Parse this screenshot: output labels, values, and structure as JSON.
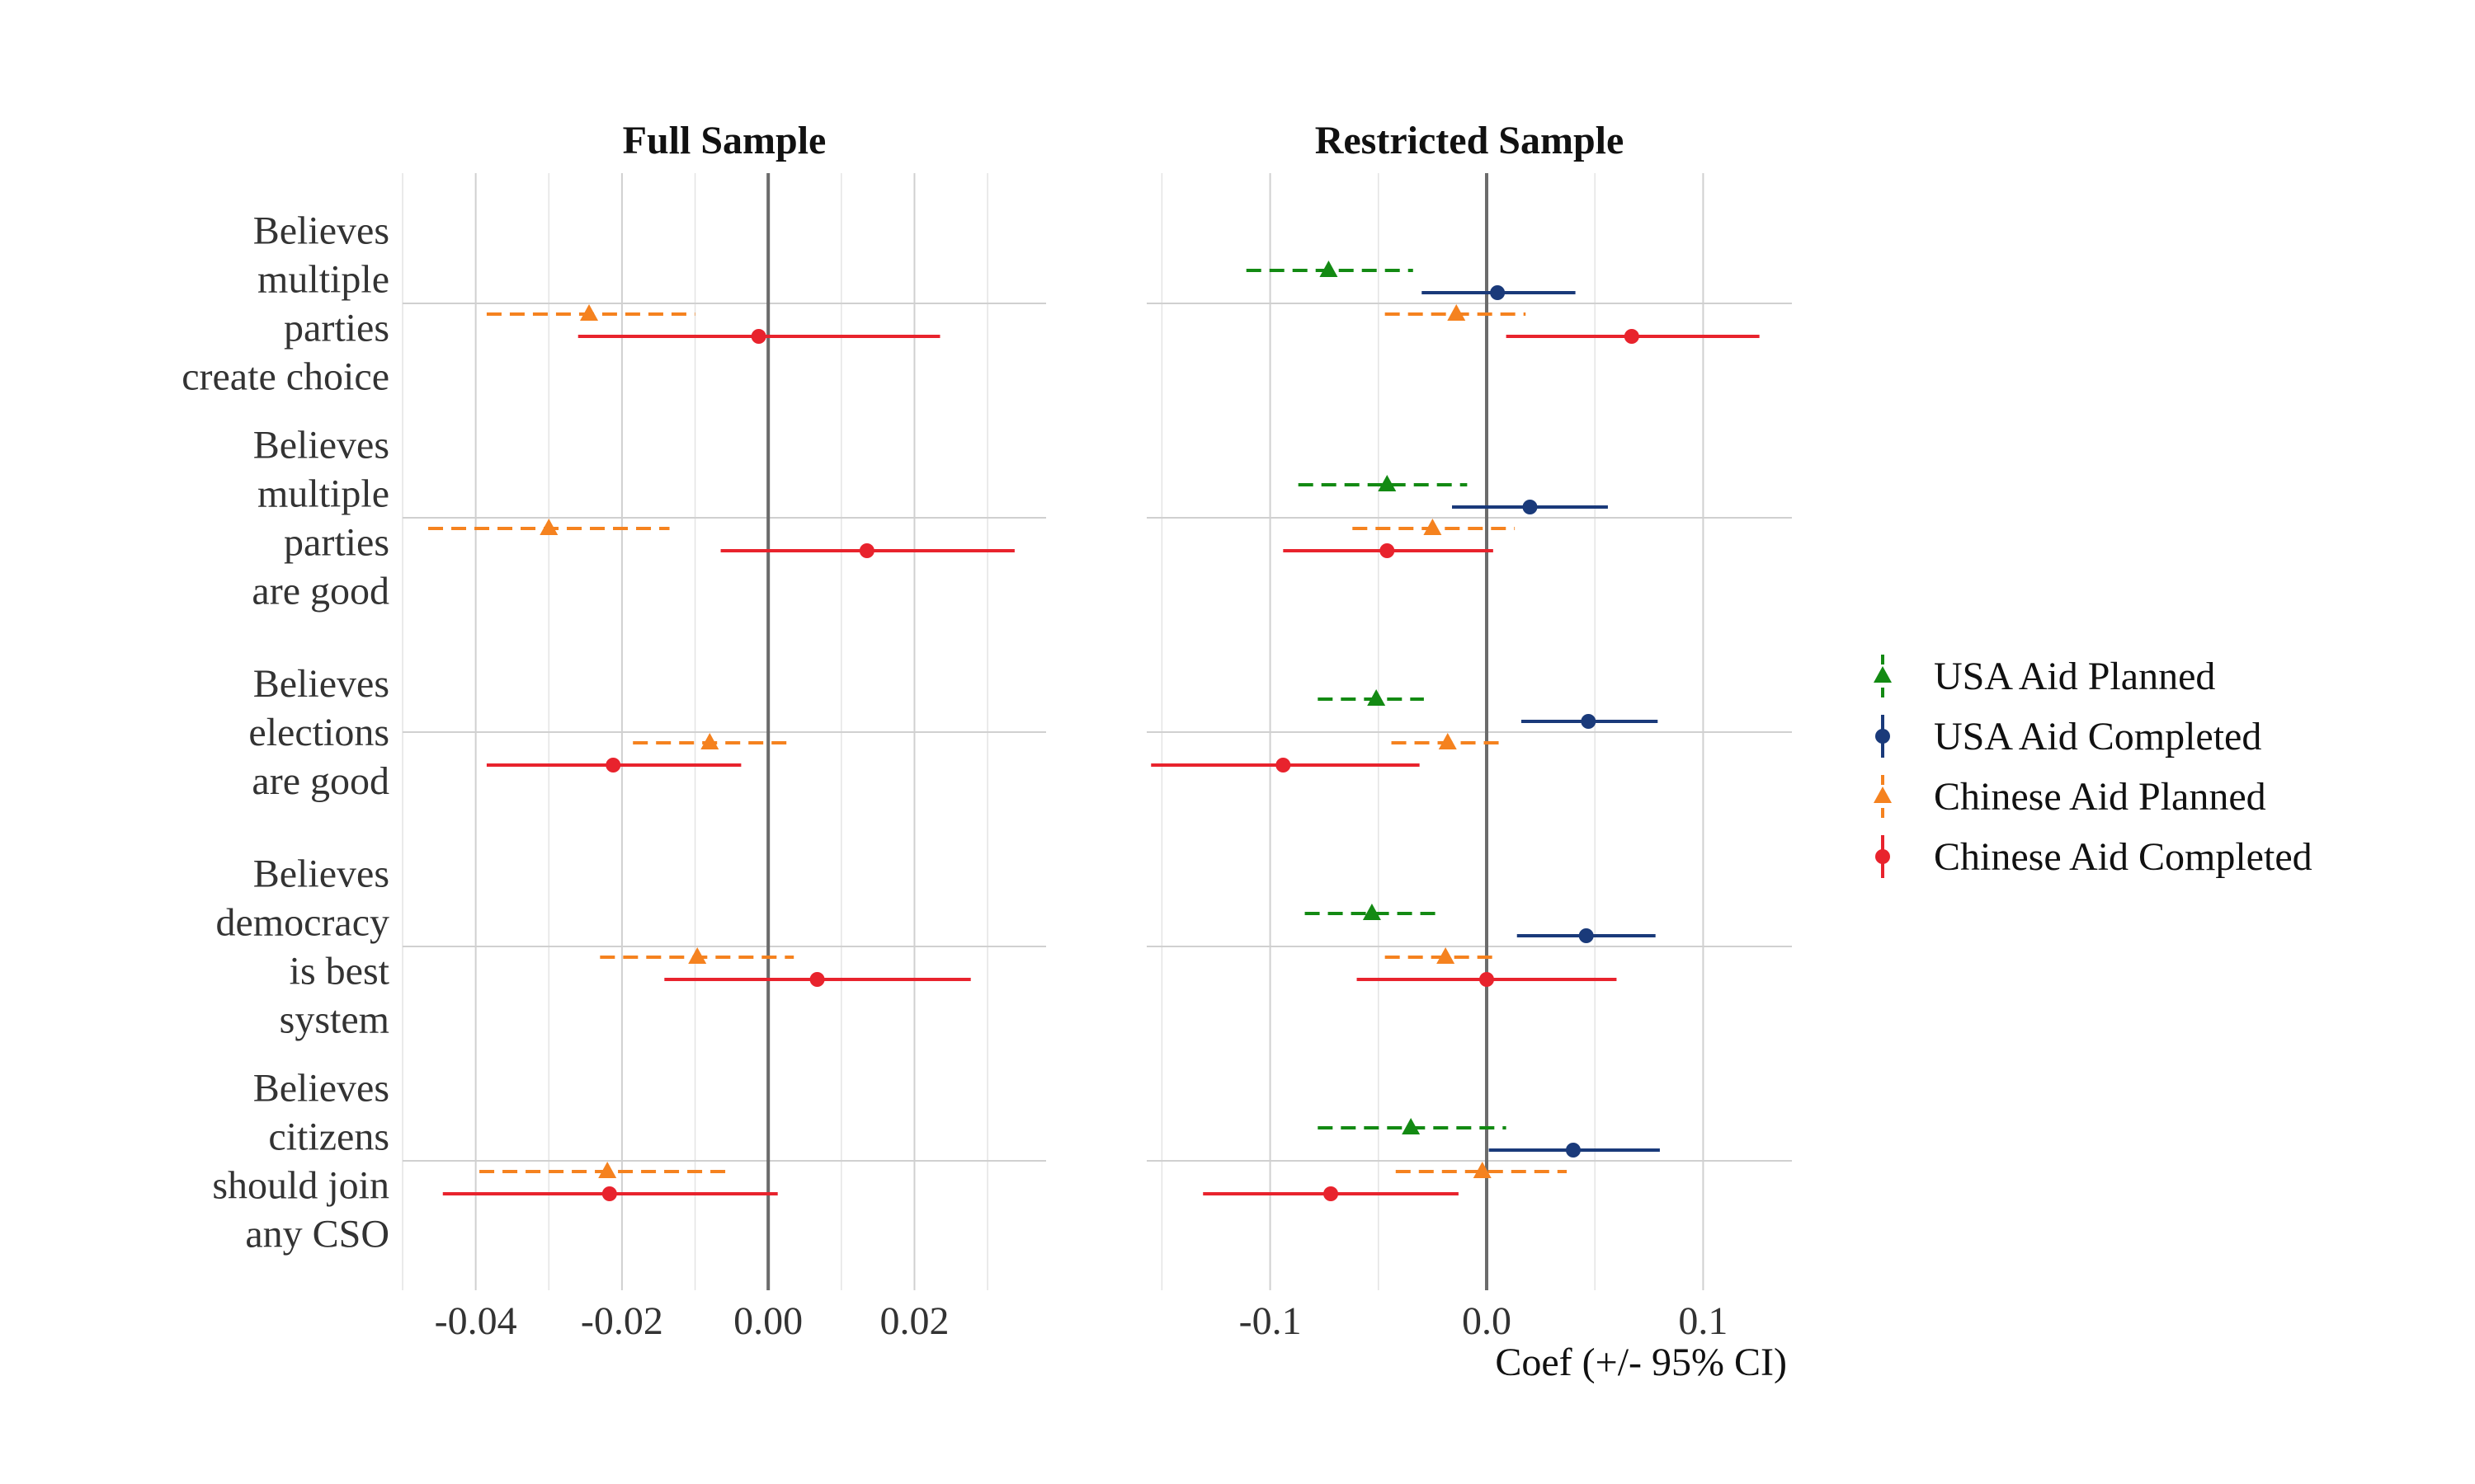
{
  "chart_data": {
    "type": "coefficient-plot",
    "xlabel": "Coef (+/- 95% CI)",
    "categories": [
      [
        "Believes",
        "multiple",
        "parties",
        "create choice"
      ],
      [
        "Believes",
        "multiple",
        "parties",
        "are good"
      ],
      [
        "Believes",
        "elections",
        "are good"
      ],
      [
        "Believes",
        "democracy",
        "is best",
        "system"
      ],
      [
        "Believes",
        "citizens",
        "should join",
        "any CSO"
      ]
    ],
    "series_info": [
      {
        "name": "USA Aid Planned",
        "color": "#138a13",
        "shape": "triangle",
        "dash": true
      },
      {
        "name": "USA Aid Completed",
        "color": "#1a3a7a",
        "shape": "circle",
        "dash": false
      },
      {
        "name": "Chinese Aid Planned",
        "color": "#f5821f",
        "shape": "triangle",
        "dash": true
      },
      {
        "name": "Chinese Aid Completed",
        "color": "#e8232d",
        "shape": "circle",
        "dash": false
      }
    ],
    "panels": [
      {
        "title": "Full Sample",
        "xlim": [
          -0.05,
          0.038
        ],
        "ticks": [
          -0.04,
          -0.02,
          0.0,
          0.02
        ],
        "tick_labels": [
          "-0.04",
          "-0.02",
          "0.00",
          "0.02"
        ],
        "series": [
          {
            "name": "USA Aid Planned",
            "points": []
          },
          {
            "name": "USA Aid Completed",
            "points": []
          },
          {
            "name": "Chinese Aid Planned",
            "points": [
              {
                "est": -0.0245,
                "lo": -0.0385,
                "hi": -0.01
              },
              {
                "est": -0.03,
                "lo": -0.0465,
                "hi": -0.0135
              },
              {
                "est": -0.008,
                "lo": -0.0185,
                "hi": 0.0025
              },
              {
                "est": -0.0097,
                "lo": -0.023,
                "hi": 0.0035
              },
              {
                "est": -0.022,
                "lo": -0.0395,
                "hi": -0.005
              }
            ]
          },
          {
            "name": "Chinese Aid Completed",
            "points": [
              {
                "est": -0.0013,
                "lo": -0.026,
                "hi": 0.0235
              },
              {
                "est": 0.0135,
                "lo": -0.0065,
                "hi": 0.0337
              },
              {
                "est": -0.0212,
                "lo": -0.0385,
                "hi": -0.0037
              },
              {
                "est": 0.0067,
                "lo": -0.0142,
                "hi": 0.0277
              },
              {
                "est": -0.0217,
                "lo": -0.0445,
                "hi": 0.0013
              }
            ]
          }
        ]
      },
      {
        "title": "Restricted Sample",
        "xlim": [
          -0.157,
          0.141
        ],
        "ticks": [
          -0.1,
          0.0,
          0.1
        ],
        "tick_labels": [
          "-0.1",
          "0.0",
          "0.1"
        ],
        "series": [
          {
            "name": "USA Aid Planned",
            "points": [
              {
                "est": -0.073,
                "lo": -0.111,
                "hi": -0.034
              },
              {
                "est": -0.046,
                "lo": -0.087,
                "hi": -0.009
              },
              {
                "est": -0.051,
                "lo": -0.078,
                "hi": -0.029
              },
              {
                "est": -0.053,
                "lo": -0.084,
                "hi": -0.02
              },
              {
                "est": -0.035,
                "lo": -0.078,
                "hi": 0.009
              }
            ]
          },
          {
            "name": "USA Aid Completed",
            "points": [
              {
                "est": 0.005,
                "lo": -0.03,
                "hi": 0.041
              },
              {
                "est": 0.02,
                "lo": -0.016,
                "hi": 0.056
              },
              {
                "est": 0.047,
                "lo": 0.016,
                "hi": 0.079
              },
              {
                "est": 0.046,
                "lo": 0.014,
                "hi": 0.078
              },
              {
                "est": 0.04,
                "lo": 0.001,
                "hi": 0.08
              }
            ]
          },
          {
            "name": "Chinese Aid Planned",
            "points": [
              {
                "est": -0.014,
                "lo": -0.047,
                "hi": 0.018
              },
              {
                "est": -0.025,
                "lo": -0.062,
                "hi": 0.013
              },
              {
                "est": -0.018,
                "lo": -0.044,
                "hi": 0.006
              },
              {
                "est": -0.019,
                "lo": -0.047,
                "hi": 0.004
              },
              {
                "est": -0.002,
                "lo": -0.042,
                "hi": 0.037
              }
            ]
          },
          {
            "name": "Chinese Aid Completed",
            "points": [
              {
                "est": 0.067,
                "lo": 0.009,
                "hi": 0.126
              },
              {
                "est": -0.046,
                "lo": -0.094,
                "hi": 0.003
              },
              {
                "est": -0.094,
                "lo": -0.155,
                "hi": -0.031
              },
              {
                "est": 0.0,
                "lo": -0.06,
                "hi": 0.06
              },
              {
                "est": -0.072,
                "lo": -0.131,
                "hi": -0.013
              }
            ]
          }
        ]
      }
    ]
  }
}
